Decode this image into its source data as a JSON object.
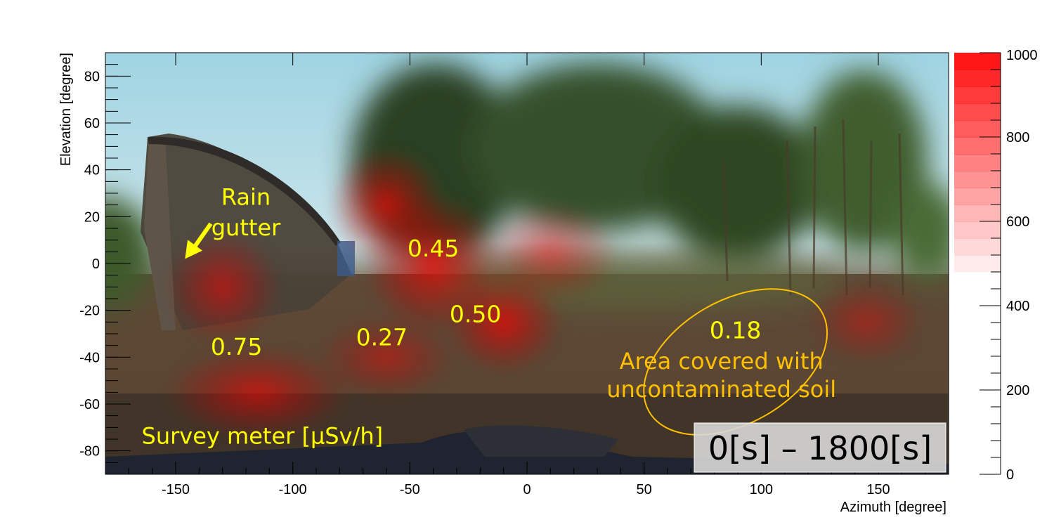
{
  "chart_data": {
    "type": "heatmap",
    "title": "",
    "xlabel": "Azimuth [degree]",
    "ylabel": "Elevation [degree]",
    "xlim": [
      -180,
      180
    ],
    "ylim": [
      -90,
      90
    ],
    "x_ticks": [
      -150,
      -100,
      -50,
      0,
      50,
      100,
      150
    ],
    "y_ticks": [
      80,
      60,
      40,
      20,
      0,
      -20,
      -40,
      -60,
      -80
    ],
    "colorbar": {
      "range": [
        0,
        1000
      ],
      "ticks": [
        1000,
        800,
        600,
        400,
        200,
        0
      ],
      "visible_min": 480,
      "bin_step": 40,
      "color": "#ff0000"
    },
    "hotspots": [
      {
        "x": -130,
        "y": -10,
        "sx": 25,
        "sy": 25,
        "w": 0.55
      },
      {
        "x": -115,
        "y": -55,
        "sx": 40,
        "sy": 20,
        "w": 0.6
      },
      {
        "x": -60,
        "y": 25,
        "sx": 25,
        "sy": 25,
        "w": 0.7
      },
      {
        "x": -40,
        "y": 0,
        "sx": 30,
        "sy": 30,
        "w": 0.75
      },
      {
        "x": -10,
        "y": -25,
        "sx": 25,
        "sy": 22,
        "w": 0.7
      },
      {
        "x": 10,
        "y": 5,
        "sx": 30,
        "sy": 22,
        "w": 0.5
      },
      {
        "x": -60,
        "y": -40,
        "sx": 30,
        "sy": 18,
        "w": 0.45
      },
      {
        "x": 145,
        "y": -25,
        "sx": 25,
        "sy": 18,
        "w": 0.4
      }
    ],
    "annotations": [
      {
        "text": "Rain",
        "x": -120,
        "y": 25,
        "color": "#ffff00"
      },
      {
        "text": "gutter",
        "x": -120,
        "y": 12,
        "color": "#ffff00"
      },
      {
        "text": "0.45",
        "x": -40,
        "y": 3,
        "color": "#ffff00"
      },
      {
        "text": "0.50",
        "x": -22,
        "y": -25,
        "color": "#ffff00"
      },
      {
        "text": "0.27",
        "x": -62,
        "y": -35,
        "color": "#ffff00"
      },
      {
        "text": "0.75",
        "x": -124,
        "y": -39,
        "color": "#ffff00"
      },
      {
        "text": "0.18",
        "x": 89,
        "y": -32,
        "color": "#ffff00"
      },
      {
        "text": "Area covered with",
        "x": 83,
        "y": -45,
        "color": "#ffc000"
      },
      {
        "text": "uncontaminated soil",
        "x": 83,
        "y": -57,
        "color": "#ffc000"
      },
      {
        "text": "Survey meter [μSv/h]",
        "x": -113,
        "y": -77,
        "color": "#ffff00"
      }
    ],
    "ellipse": {
      "cx": 89,
      "cy": -42,
      "rx": 38,
      "ry": 23,
      "rotate": -30,
      "color": "#ffc000"
    },
    "gutter_arrow": {
      "x1": -135,
      "y1": 17,
      "x2": -146,
      "y2": 2,
      "color": "#ffff00"
    },
    "time_label": "0[s] – 1800[s]"
  }
}
